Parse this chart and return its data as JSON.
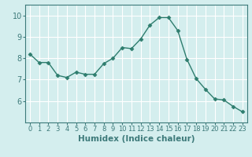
{
  "x": [
    0,
    1,
    2,
    3,
    4,
    5,
    6,
    7,
    8,
    9,
    10,
    11,
    12,
    13,
    14,
    15,
    16,
    17,
    18,
    19,
    20,
    21,
    22,
    23
  ],
  "y": [
    8.2,
    7.8,
    7.8,
    7.2,
    7.1,
    7.35,
    7.25,
    7.25,
    7.75,
    8.0,
    8.5,
    8.45,
    8.9,
    9.55,
    9.9,
    9.9,
    9.3,
    7.95,
    7.05,
    6.55,
    6.1,
    6.05,
    5.75,
    5.5
  ],
  "line_color": "#2e7d6e",
  "marker": "D",
  "marker_size": 2.5,
  "linewidth": 1.0,
  "xlabel": "Humidex (Indice chaleur)",
  "xlabel_fontsize": 7.5,
  "xlim": [
    -0.5,
    23.5
  ],
  "ylim": [
    5.0,
    10.5
  ],
  "yticks": [
    6,
    7,
    8,
    9,
    10
  ],
  "xticks": [
    0,
    1,
    2,
    3,
    4,
    5,
    6,
    7,
    8,
    9,
    10,
    11,
    12,
    13,
    14,
    15,
    16,
    17,
    18,
    19,
    20,
    21,
    22,
    23
  ],
  "bg_color": "#d4eeee",
  "grid_color": "#ffffff",
  "spine_color": "#3d7a7a",
  "tick_color": "#3d7a7a",
  "x_tick_fontsize": 6.0,
  "y_tick_fontsize": 7.0
}
